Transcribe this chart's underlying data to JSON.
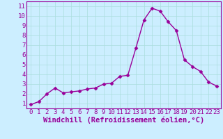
{
  "x": [
    0,
    1,
    2,
    3,
    4,
    5,
    6,
    7,
    8,
    9,
    10,
    11,
    12,
    13,
    14,
    15,
    16,
    17,
    18,
    19,
    20,
    21,
    22,
    23
  ],
  "y": [
    0.9,
    1.2,
    2.0,
    2.6,
    2.1,
    2.2,
    2.3,
    2.5,
    2.6,
    3.0,
    3.1,
    3.8,
    3.9,
    6.7,
    9.6,
    10.8,
    10.5,
    9.4,
    8.5,
    5.5,
    4.8,
    4.3,
    3.2,
    2.8
  ],
  "line_color": "#990099",
  "marker": "D",
  "markersize": 2.5,
  "linewidth": 1.0,
  "bg_color": "#cceeff",
  "grid_color": "#aadddd",
  "xlabel": "Windchill (Refroidissement éolien,°C)",
  "xlabel_color": "#990099",
  "tick_color": "#990099",
  "label_color": "#990099",
  "xlim": [
    -0.5,
    23.5
  ],
  "ylim": [
    0.5,
    11.5
  ],
  "yticks": [
    1,
    2,
    3,
    4,
    5,
    6,
    7,
    8,
    9,
    10,
    11
  ],
  "xticks": [
    0,
    1,
    2,
    3,
    4,
    5,
    6,
    7,
    8,
    9,
    10,
    11,
    12,
    13,
    14,
    15,
    16,
    17,
    18,
    19,
    20,
    21,
    22,
    23
  ],
  "font_size": 6.5,
  "xlabel_fontsize": 7.5
}
